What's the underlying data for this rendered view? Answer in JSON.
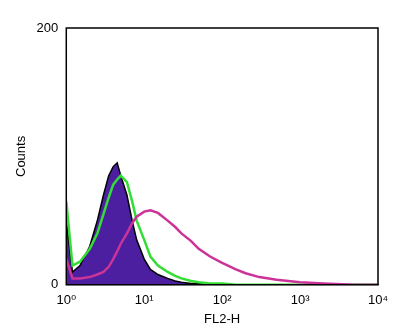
{
  "chart_data": {
    "type": "line",
    "x_label": "FL2-H",
    "y_label": "Counts",
    "x": [
      1,
      1.2,
      1.5,
      2,
      2.5,
      3,
      3.5,
      4,
      4.5,
      5,
      6,
      7,
      8,
      10,
      12,
      15,
      20,
      25,
      30,
      40,
      50,
      70,
      100,
      150,
      200,
      300,
      500,
      1000,
      2000,
      5000,
      10000
    ],
    "series": [
      {
        "color": "#4b1fa0",
        "type": "area",
        "values": [
          50,
          10,
          15,
          30,
          50,
          70,
          85,
          92,
          95,
          85,
          70,
          50,
          35,
          20,
          12,
          8,
          5,
          3,
          2,
          1,
          1,
          0,
          0,
          0,
          0,
          0,
          0,
          0,
          0,
          0,
          0
        ]
      },
      {
        "color": "#33dd33",
        "type": "line",
        "values": [
          65,
          15,
          18,
          28,
          40,
          55,
          68,
          78,
          82,
          85,
          80,
          65,
          50,
          35,
          22,
          15,
          10,
          7,
          5,
          3,
          2,
          1,
          1,
          0,
          0,
          0,
          0,
          0,
          0,
          0,
          0
        ]
      },
      {
        "color": "#cc3399",
        "type": "line",
        "values": [
          20,
          5,
          5,
          6,
          8,
          10,
          14,
          20,
          26,
          32,
          40,
          48,
          53,
          57,
          58,
          56,
          50,
          45,
          40,
          34,
          28,
          22,
          17,
          12,
          9,
          6,
          4,
          2,
          1,
          0,
          0
        ]
      }
    ],
    "log": "x",
    "xlim": [
      1,
      10000
    ],
    "xticks": [
      {
        "value": 1,
        "label": "10⁰"
      },
      {
        "value": 10,
        "label": "10¹"
      },
      {
        "value": 100,
        "label": "10²"
      },
      {
        "value": 1000,
        "label": "10³"
      },
      {
        "value": 10000,
        "label": "10⁴"
      }
    ],
    "ylim": [
      0,
      200
    ],
    "yticks": [
      0,
      200
    ],
    "grid": false
  }
}
